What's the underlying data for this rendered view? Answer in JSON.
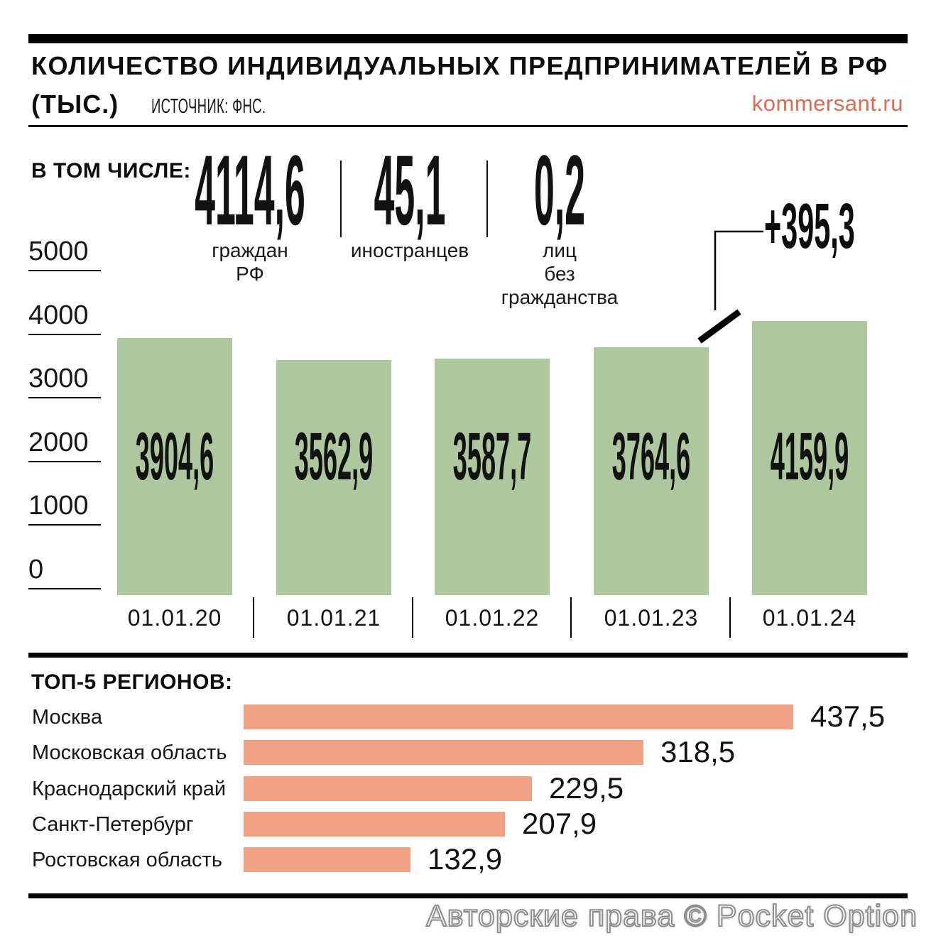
{
  "header": {
    "title": "КОЛИЧЕСТВО ИНДИВИДУАЛЬНЫХ ПРЕДПРИНИМАТЕЛЕЙ В РФ",
    "unit": "(ТЫС.)",
    "source": "ИСТОЧНИК: ФНС.",
    "site": "kommersant.ru"
  },
  "breakdown": {
    "label": "В ТОМ ЧИСЛЕ:",
    "items": [
      {
        "value": "4114,6",
        "label": "граждан РФ"
      },
      {
        "value": "45,1",
        "label": "иностранцев"
      },
      {
        "value": "0,2",
        "label": "лиц\nбез\nгражданства"
      }
    ]
  },
  "chart_data": [
    {
      "type": "bar",
      "title": "Количество индивидуальных предпринимателей в РФ (тыс.)",
      "categories": [
        "01.01.20",
        "01.01.21",
        "01.01.22",
        "01.01.23",
        "01.01.24"
      ],
      "values": [
        3904.6,
        3562.9,
        3587.7,
        3764.6,
        4159.9
      ],
      "value_labels": [
        "3904,6",
        "3562,9",
        "3587,7",
        "3764,6",
        "4159,9"
      ],
      "yticks": [
        5000,
        4000,
        3000,
        2000,
        1000,
        0
      ],
      "ylim": [
        0,
        5000
      ],
      "annotation": "+395,3",
      "annotation_meaning": "change from 01.01.23 to 01.01.24",
      "bar_color": "#adc79f",
      "grid": "left tick underlines only",
      "legend": "none"
    },
    {
      "type": "bar",
      "orientation": "horizontal",
      "title": "ТОП-5 РЕГИОНОВ:",
      "categories": [
        "Москва",
        "Московская область",
        "Краснодарский край",
        "Санкт-Петербург",
        "Ростовская область"
      ],
      "values": [
        437.5,
        318.5,
        229.5,
        207.9,
        132.9
      ],
      "value_labels": [
        "437,5",
        "318,5",
        "229,5",
        "207,9",
        "132,9"
      ],
      "bar_color": "#f1a285",
      "legend": "none"
    }
  ],
  "watermark": "Авторские права © Pocket Option",
  "colors": {
    "year_bar": "#adc79f",
    "region_bar": "#f1a285",
    "site_accent": "#dd6b52",
    "text": "#0d0d0d",
    "watermark_gray": "#8f8f8f"
  }
}
